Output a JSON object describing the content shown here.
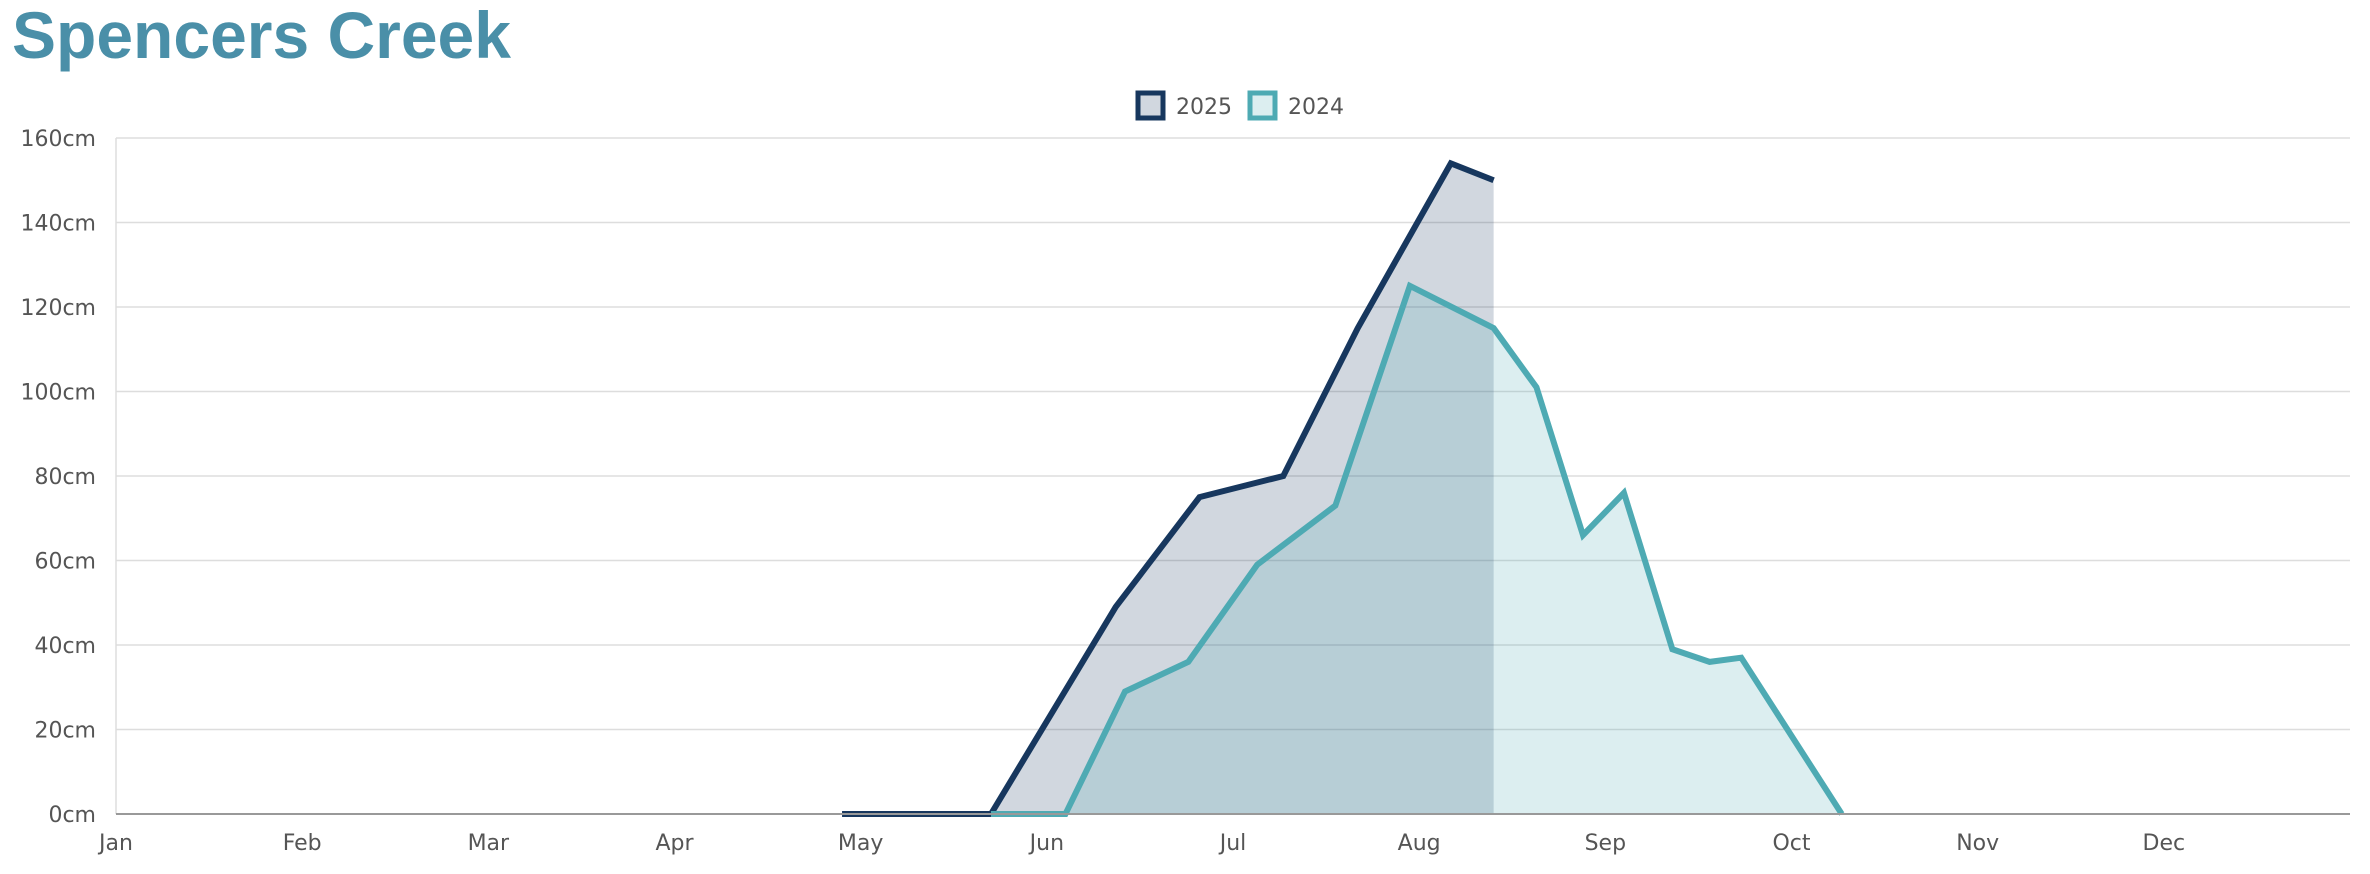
{
  "title": "Spencers Creek",
  "colors": {
    "title": "#4a8fa8",
    "grid": "#dddddd",
    "axis": "#999999"
  },
  "chart_data": {
    "type": "area",
    "title": "Spencers Creek",
    "xlabel": "",
    "ylabel": "",
    "x_tick_labels": [
      "Jan",
      "Feb",
      "Mar",
      "Apr",
      "May",
      "Jun",
      "Jul",
      "Aug",
      "Sep",
      "Oct",
      "Nov",
      "Dec"
    ],
    "y_tick_labels": [
      "0cm",
      "20cm",
      "40cm",
      "60cm",
      "80cm",
      "100cm",
      "120cm",
      "140cm",
      "160cm"
    ],
    "x_unit": "month (1 = start of Jan)",
    "xlim": [
      1,
      13
    ],
    "ylim": [
      0,
      160
    ],
    "y_unit": "cm",
    "grid": true,
    "legend_position": "top-center",
    "series": [
      {
        "name": "2025",
        "line_color": "#17375e",
        "fill_color": "rgba(23,55,94,0.2)",
        "points": [
          [
            4.9,
            0
          ],
          [
            5.7,
            0
          ],
          [
            6.37,
            49
          ],
          [
            6.82,
            75
          ],
          [
            7.27,
            80
          ],
          [
            7.67,
            115
          ],
          [
            8.17,
            154
          ],
          [
            8.4,
            150
          ]
        ]
      },
      {
        "name": "2024",
        "line_color": "#4eaab3",
        "fill_color": "rgba(78,170,179,0.2)",
        "points": [
          [
            5.7,
            0
          ],
          [
            6.1,
            0
          ],
          [
            6.42,
            29
          ],
          [
            6.76,
            36
          ],
          [
            7.13,
            59
          ],
          [
            7.55,
            73
          ],
          [
            7.95,
            125
          ],
          [
            8.4,
            115
          ],
          [
            8.63,
            101
          ],
          [
            8.88,
            66
          ],
          [
            9.1,
            76
          ],
          [
            9.36,
            39
          ],
          [
            9.56,
            36
          ],
          [
            9.73,
            37
          ],
          [
            10.27,
            0
          ]
        ]
      }
    ]
  }
}
